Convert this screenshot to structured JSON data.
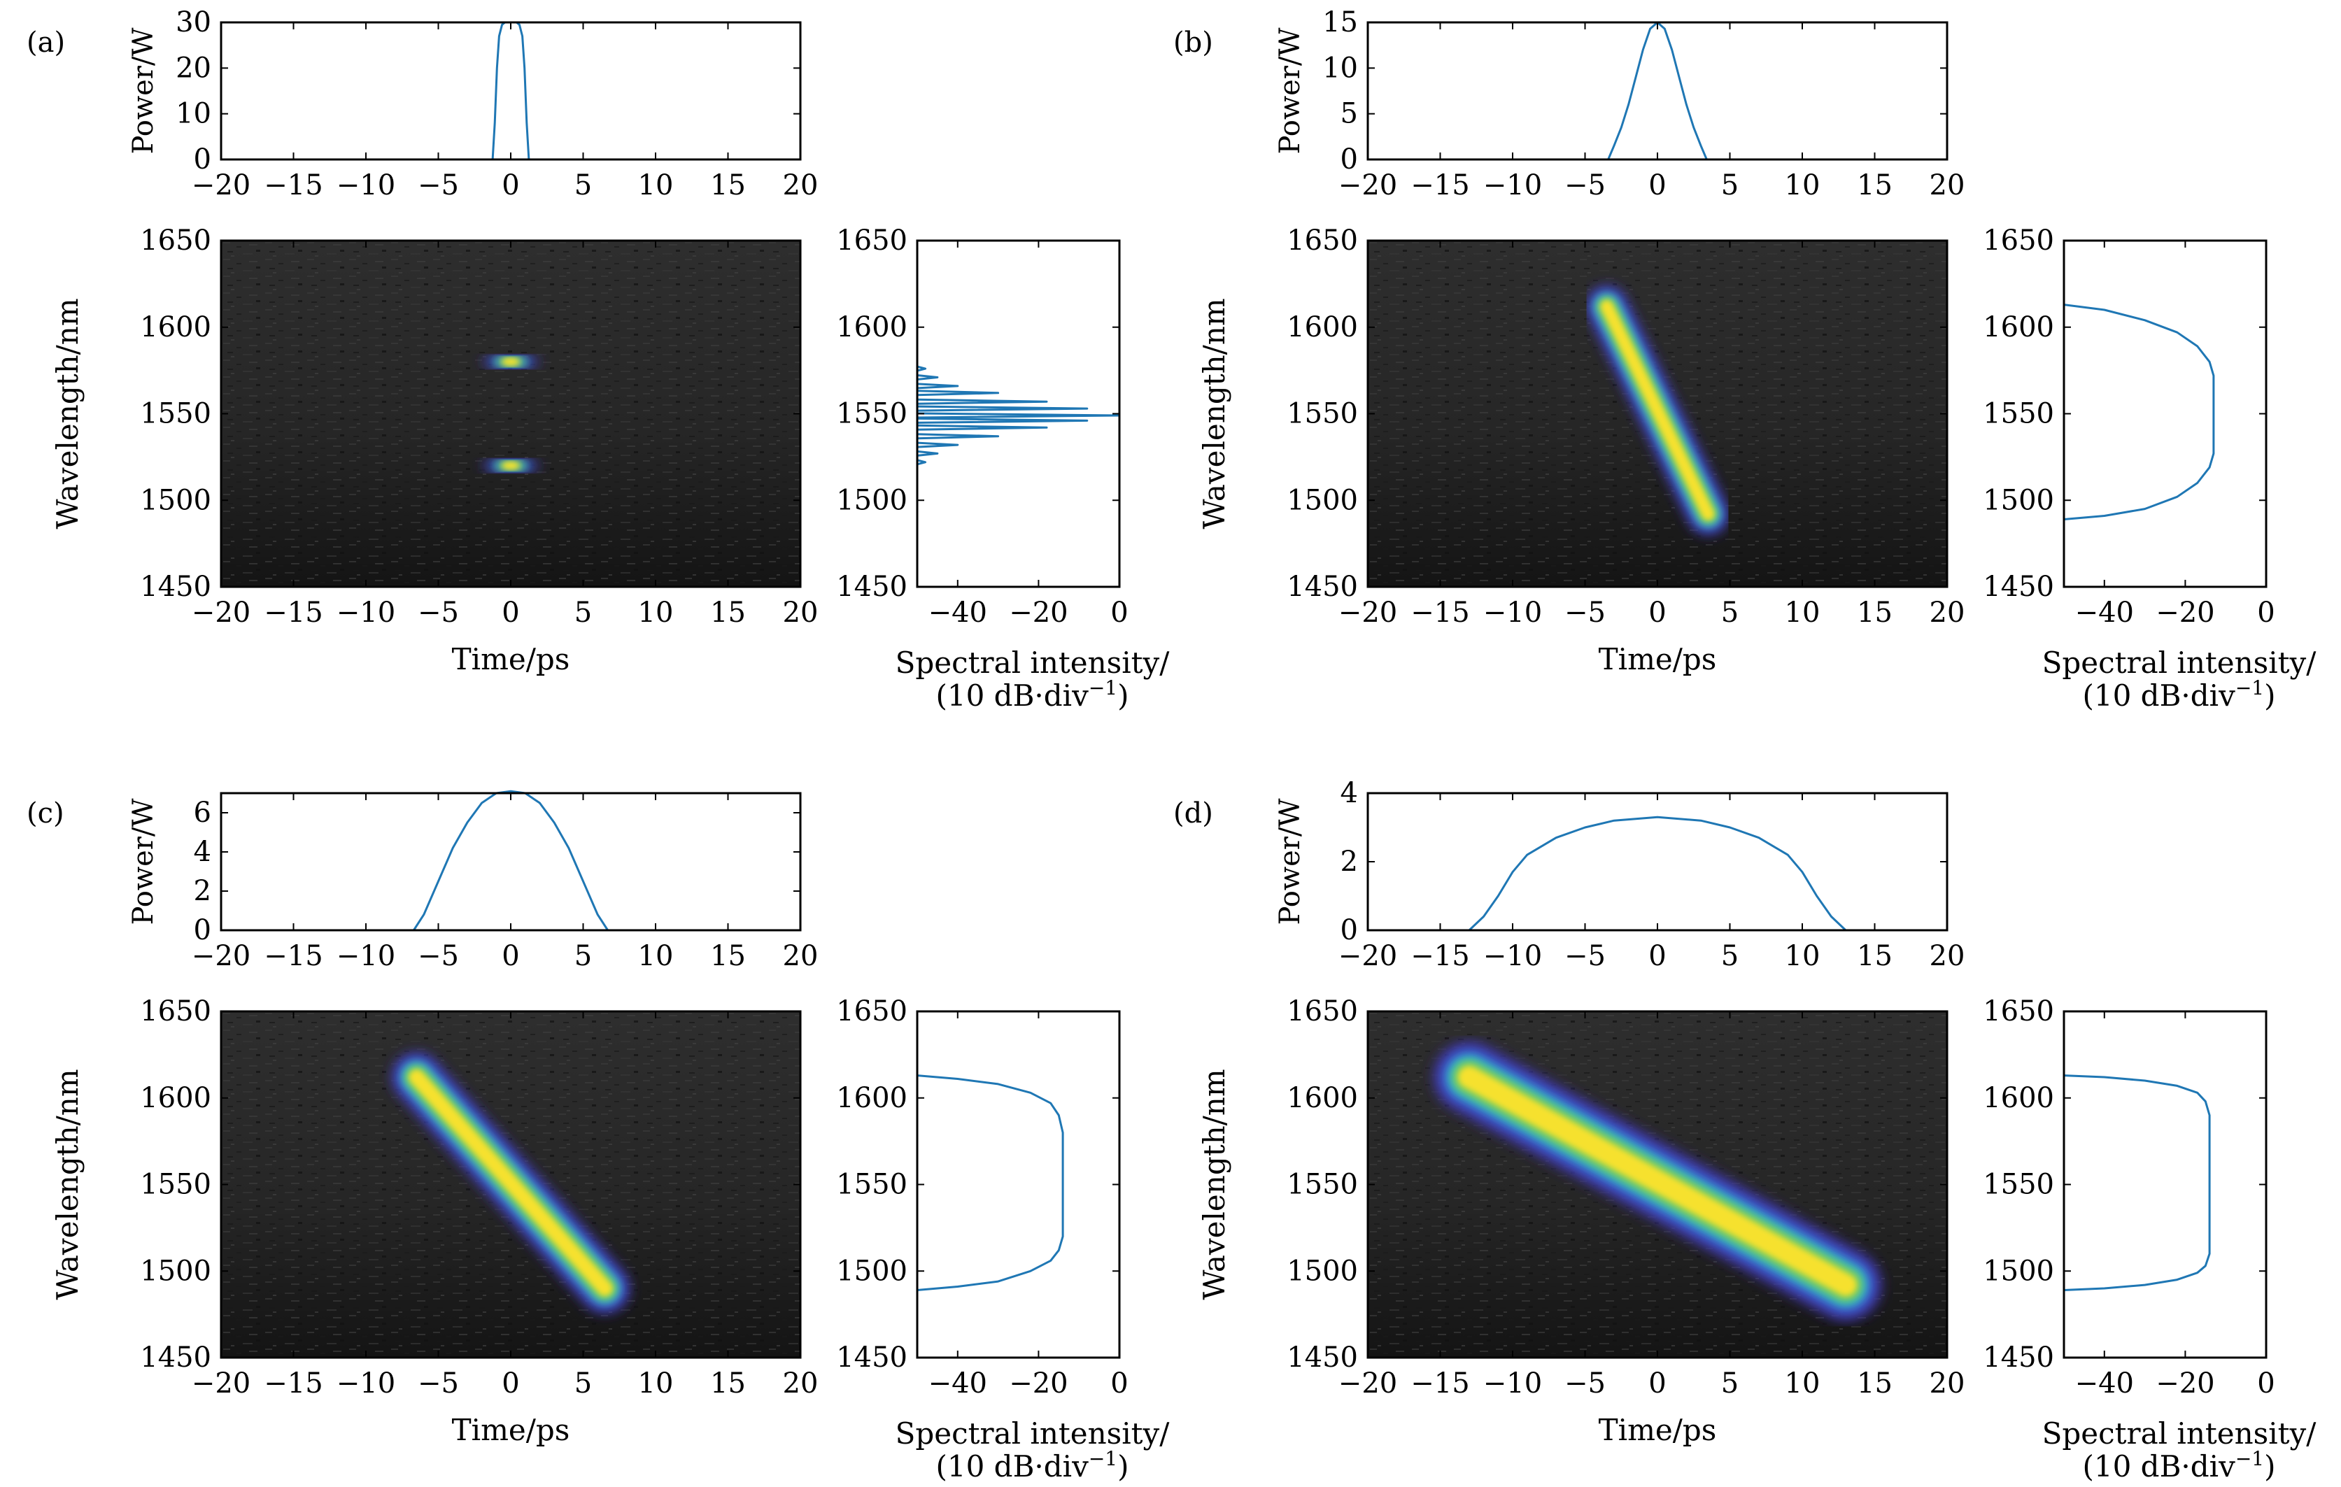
{
  "chart_data": [
    {
      "panel_label": "(a)",
      "power": {
        "type": "line",
        "ylabel": "Power/W",
        "xlim": [
          -20,
          20
        ],
        "ylim": [
          0,
          30
        ],
        "xticks": [
          -20,
          -15,
          -10,
          -5,
          0,
          5,
          10,
          15,
          20
        ],
        "yticks": [
          0,
          10,
          20,
          30
        ],
        "line_color": "#1f77b4",
        "x": [
          -1.25,
          -1.1,
          -0.95,
          -0.8,
          -0.6,
          -0.4,
          -0.2,
          0,
          0.2,
          0.4,
          0.6,
          0.8,
          0.95,
          1.1,
          1.25
        ],
        "y": [
          0,
          8,
          20,
          27,
          29.5,
          30,
          30,
          30,
          30,
          30,
          29.5,
          27,
          20,
          8,
          0
        ]
      },
      "spectrogram": {
        "type": "heatmap",
        "xlabel": "Time/ps",
        "ylabel": "Wavelength/nm",
        "xlim": [
          -20,
          20
        ],
        "ylim": [
          1450,
          1650
        ],
        "xticks": [
          -20,
          -15,
          -10,
          -5,
          0,
          5,
          10,
          15,
          20
        ],
        "yticks": [
          1450,
          1500,
          1550,
          1600,
          1650
        ],
        "ridge": [
          [
            -1.3,
            1520,
            1.3,
            1520
          ],
          [
            -1.3,
            1580,
            1.3,
            1580
          ]
        ],
        "ridge_width_ps": 2.4
      },
      "spectrum": {
        "type": "line",
        "xlabel": "Spectral intensity/",
        "xlabel2": "(10 dB·div",
        "xlabel2_sup": "−1",
        "xlabel2_end": ")",
        "xlim": [
          -50,
          0
        ],
        "ylim": [
          1450,
          1650
        ],
        "xticks": [
          -40,
          -20,
          0
        ],
        "yticks": [
          1450,
          1500,
          1550,
          1600,
          1650
        ],
        "line_color": "#1f77b4",
        "shape": "comb",
        "peaks": [
          [
            1522,
            -48
          ],
          [
            1527,
            -45
          ],
          [
            1532,
            -40
          ],
          [
            1537,
            -30
          ],
          [
            1542,
            -18
          ],
          [
            1546,
            -8
          ],
          [
            1549,
            0
          ],
          [
            1553,
            -8
          ],
          [
            1557,
            -18
          ],
          [
            1562,
            -30
          ],
          [
            1566,
            -40
          ],
          [
            1571,
            -45
          ],
          [
            1576,
            -48
          ]
        ]
      }
    },
    {
      "panel_label": "(b)",
      "power": {
        "type": "line",
        "ylabel": "Power/W",
        "xlim": [
          -20,
          20
        ],
        "ylim": [
          0,
          15
        ],
        "xticks": [
          -20,
          -15,
          -10,
          -5,
          0,
          5,
          10,
          15,
          20
        ],
        "yticks": [
          0,
          5,
          10,
          15
        ],
        "line_color": "#1f77b4",
        "x": [
          -3.4,
          -3,
          -2.5,
          -2,
          -1.5,
          -1,
          -0.5,
          0,
          0.5,
          1,
          1.5,
          2,
          2.5,
          3,
          3.4
        ],
        "y": [
          0,
          1.5,
          3.5,
          6,
          9,
          12,
          14.3,
          15,
          14.3,
          12,
          9,
          6,
          3.5,
          1.5,
          0
        ]
      },
      "spectrogram": {
        "type": "heatmap",
        "xlabel": "Time/ps",
        "ylabel": "Wavelength/nm",
        "xlim": [
          -20,
          20
        ],
        "ylim": [
          1450,
          1650
        ],
        "xticks": [
          -20,
          -15,
          -10,
          -5,
          0,
          5,
          10,
          15,
          20
        ],
        "yticks": [
          1450,
          1500,
          1550,
          1600,
          1650
        ],
        "ridge": [
          [
            -3.5,
            1612,
            3.5,
            1492
          ]
        ],
        "ridge_width_ps": 1.8
      },
      "spectrum": {
        "type": "line",
        "xlabel": "Spectral intensity/",
        "xlabel2": "(10 dB·div",
        "xlabel2_sup": "−1",
        "xlabel2_end": ")",
        "xlim": [
          -50,
          0
        ],
        "ylim": [
          1450,
          1650
        ],
        "xticks": [
          -40,
          -20,
          0
        ],
        "yticks": [
          1450,
          1500,
          1550,
          1600,
          1650
        ],
        "line_color": "#1f77b4",
        "shape": "curve",
        "x": [
          -50,
          -40,
          -30,
          -22,
          -17,
          -14,
          -13,
          -13,
          -13,
          -14,
          -17,
          -22,
          -30,
          -40,
          -50
        ],
        "y": [
          1613,
          1610,
          1604,
          1597,
          1589,
          1580,
          1572,
          1550,
          1527,
          1519,
          1510,
          1502,
          1495,
          1491,
          1489
        ]
      }
    },
    {
      "panel_label": "(c)",
      "power": {
        "type": "line",
        "ylabel": "Power/W",
        "xlim": [
          -20,
          20
        ],
        "ylim": [
          0,
          7
        ],
        "xticks": [
          -20,
          -15,
          -10,
          -5,
          0,
          5,
          10,
          15,
          20
        ],
        "yticks": [
          0,
          2,
          4,
          6
        ],
        "line_color": "#1f77b4",
        "x": [
          -6.7,
          -6,
          -5,
          -4,
          -3,
          -2,
          -1,
          0,
          1,
          2,
          3,
          4,
          5,
          6,
          6.7
        ],
        "y": [
          0,
          0.8,
          2.5,
          4.2,
          5.5,
          6.5,
          7,
          7.1,
          7,
          6.5,
          5.5,
          4.2,
          2.5,
          0.8,
          0
        ]
      },
      "spectrogram": {
        "type": "heatmap",
        "xlabel": "Time/ps",
        "ylabel": "Wavelength/nm",
        "xlim": [
          -20,
          20
        ],
        "ylim": [
          1450,
          1650
        ],
        "xticks": [
          -20,
          -15,
          -10,
          -5,
          0,
          5,
          10,
          15,
          20
        ],
        "yticks": [
          1450,
          1500,
          1550,
          1600,
          1650
        ],
        "ridge": [
          [
            -6.5,
            1612,
            6.5,
            1490
          ]
        ],
        "ridge_width_ps": 2.2
      },
      "spectrum": {
        "type": "line",
        "xlabel": "Spectral intensity/",
        "xlabel2": "(10 dB·div",
        "xlabel2_sup": "−1",
        "xlabel2_end": ")",
        "xlim": [
          -50,
          0
        ],
        "ylim": [
          1450,
          1650
        ],
        "xticks": [
          -40,
          -20,
          0
        ],
        "yticks": [
          1450,
          1500,
          1550,
          1600,
          1650
        ],
        "line_color": "#1f77b4",
        "shape": "curve",
        "x": [
          -50,
          -40,
          -30,
          -22,
          -17,
          -15,
          -14,
          -14,
          -14,
          -15,
          -17,
          -22,
          -30,
          -40,
          -50
        ],
        "y": [
          1613,
          1611,
          1608,
          1603,
          1597,
          1590,
          1580,
          1550,
          1520,
          1512,
          1506,
          1500,
          1494,
          1491,
          1489
        ]
      }
    },
    {
      "panel_label": "(d)",
      "power": {
        "type": "line",
        "ylabel": "Power/W",
        "xlim": [
          -20,
          20
        ],
        "ylim": [
          0,
          4
        ],
        "xticks": [
          -20,
          -15,
          -10,
          -5,
          0,
          5,
          10,
          15,
          20
        ],
        "yticks": [
          0,
          2,
          4
        ],
        "line_color": "#1f77b4",
        "x": [
          -13,
          -12,
          -11,
          -10,
          -9,
          -7,
          -5,
          -3,
          0,
          3,
          5,
          7,
          9,
          10,
          11,
          12,
          13
        ],
        "y": [
          0,
          0.4,
          1.0,
          1.7,
          2.2,
          2.7,
          3.0,
          3.2,
          3.3,
          3.2,
          3.0,
          2.7,
          2.2,
          1.7,
          1.0,
          0.4,
          0
        ]
      },
      "spectrogram": {
        "type": "heatmap",
        "xlabel": "Time/ps",
        "ylabel": "Wavelength/nm",
        "xlim": [
          -20,
          20
        ],
        "ylim": [
          1450,
          1650
        ],
        "xticks": [
          -20,
          -15,
          -10,
          -5,
          0,
          5,
          10,
          15,
          20
        ],
        "yticks": [
          1450,
          1500,
          1550,
          1600,
          1650
        ],
        "ridge": [
          [
            -13,
            1612,
            13,
            1492
          ]
        ],
        "ridge_width_ps": 3.2
      },
      "spectrum": {
        "type": "line",
        "xlabel": "Spectral intensity/",
        "xlabel2": "(10 dB·div",
        "xlabel2_sup": "−1",
        "xlabel2_end": ")",
        "xlim": [
          -50,
          0
        ],
        "ylim": [
          1450,
          1650
        ],
        "xticks": [
          -40,
          -20,
          0
        ],
        "yticks": [
          1450,
          1500,
          1550,
          1600,
          1650
        ],
        "line_color": "#1f77b4",
        "shape": "curve",
        "x": [
          -50,
          -40,
          -30,
          -22,
          -17,
          -15,
          -14,
          -14,
          -14,
          -15,
          -17,
          -22,
          -30,
          -40,
          -50
        ],
        "y": [
          1613,
          1612,
          1610,
          1607,
          1603,
          1598,
          1590,
          1550,
          1510,
          1503,
          1499,
          1495,
          1492,
          1490,
          1489
        ]
      }
    }
  ]
}
